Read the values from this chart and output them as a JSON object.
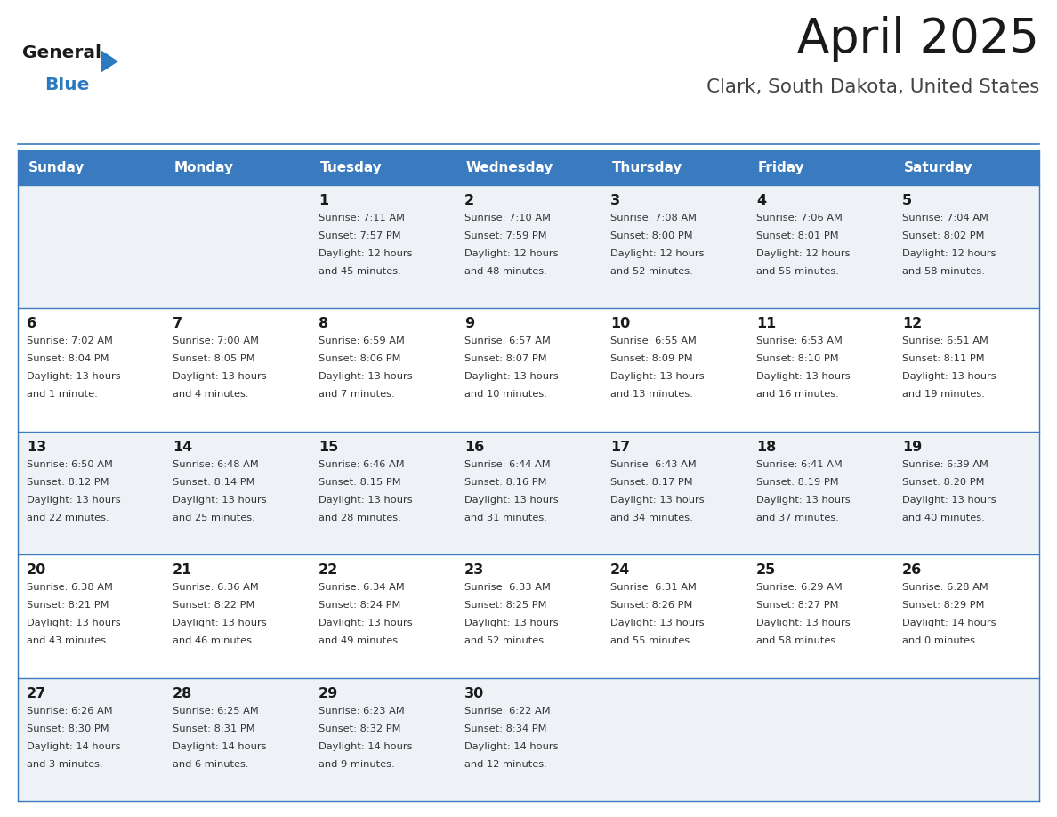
{
  "title": "April 2025",
  "subtitle": "Clark, South Dakota, United States",
  "header_bg": "#3a7abf",
  "header_text_color": "#ffffff",
  "cell_bg_even": "#eef2f7",
  "cell_bg_odd": "#ffffff",
  "border_color": "#3a7abf",
  "day_headers": [
    "Sunday",
    "Monday",
    "Tuesday",
    "Wednesday",
    "Thursday",
    "Friday",
    "Saturday"
  ],
  "title_color": "#1a1a1a",
  "subtitle_color": "#444444",
  "day_num_color": "#1a1a1a",
  "info_color": "#333333",
  "logo_general_color": "#1a1a1a",
  "logo_blue_color": "#2b7abf",
  "weeks": [
    [
      {
        "day": "",
        "sunrise": "",
        "sunset": "",
        "daylight": ""
      },
      {
        "day": "",
        "sunrise": "",
        "sunset": "",
        "daylight": ""
      },
      {
        "day": "1",
        "sunrise": "Sunrise: 7:11 AM",
        "sunset": "Sunset: 7:57 PM",
        "daylight": "Daylight: 12 hours\nand 45 minutes."
      },
      {
        "day": "2",
        "sunrise": "Sunrise: 7:10 AM",
        "sunset": "Sunset: 7:59 PM",
        "daylight": "Daylight: 12 hours\nand 48 minutes."
      },
      {
        "day": "3",
        "sunrise": "Sunrise: 7:08 AM",
        "sunset": "Sunset: 8:00 PM",
        "daylight": "Daylight: 12 hours\nand 52 minutes."
      },
      {
        "day": "4",
        "sunrise": "Sunrise: 7:06 AM",
        "sunset": "Sunset: 8:01 PM",
        "daylight": "Daylight: 12 hours\nand 55 minutes."
      },
      {
        "day": "5",
        "sunrise": "Sunrise: 7:04 AM",
        "sunset": "Sunset: 8:02 PM",
        "daylight": "Daylight: 12 hours\nand 58 minutes."
      }
    ],
    [
      {
        "day": "6",
        "sunrise": "Sunrise: 7:02 AM",
        "sunset": "Sunset: 8:04 PM",
        "daylight": "Daylight: 13 hours\nand 1 minute."
      },
      {
        "day": "7",
        "sunrise": "Sunrise: 7:00 AM",
        "sunset": "Sunset: 8:05 PM",
        "daylight": "Daylight: 13 hours\nand 4 minutes."
      },
      {
        "day": "8",
        "sunrise": "Sunrise: 6:59 AM",
        "sunset": "Sunset: 8:06 PM",
        "daylight": "Daylight: 13 hours\nand 7 minutes."
      },
      {
        "day": "9",
        "sunrise": "Sunrise: 6:57 AM",
        "sunset": "Sunset: 8:07 PM",
        "daylight": "Daylight: 13 hours\nand 10 minutes."
      },
      {
        "day": "10",
        "sunrise": "Sunrise: 6:55 AM",
        "sunset": "Sunset: 8:09 PM",
        "daylight": "Daylight: 13 hours\nand 13 minutes."
      },
      {
        "day": "11",
        "sunrise": "Sunrise: 6:53 AM",
        "sunset": "Sunset: 8:10 PM",
        "daylight": "Daylight: 13 hours\nand 16 minutes."
      },
      {
        "day": "12",
        "sunrise": "Sunrise: 6:51 AM",
        "sunset": "Sunset: 8:11 PM",
        "daylight": "Daylight: 13 hours\nand 19 minutes."
      }
    ],
    [
      {
        "day": "13",
        "sunrise": "Sunrise: 6:50 AM",
        "sunset": "Sunset: 8:12 PM",
        "daylight": "Daylight: 13 hours\nand 22 minutes."
      },
      {
        "day": "14",
        "sunrise": "Sunrise: 6:48 AM",
        "sunset": "Sunset: 8:14 PM",
        "daylight": "Daylight: 13 hours\nand 25 minutes."
      },
      {
        "day": "15",
        "sunrise": "Sunrise: 6:46 AM",
        "sunset": "Sunset: 8:15 PM",
        "daylight": "Daylight: 13 hours\nand 28 minutes."
      },
      {
        "day": "16",
        "sunrise": "Sunrise: 6:44 AM",
        "sunset": "Sunset: 8:16 PM",
        "daylight": "Daylight: 13 hours\nand 31 minutes."
      },
      {
        "day": "17",
        "sunrise": "Sunrise: 6:43 AM",
        "sunset": "Sunset: 8:17 PM",
        "daylight": "Daylight: 13 hours\nand 34 minutes."
      },
      {
        "day": "18",
        "sunrise": "Sunrise: 6:41 AM",
        "sunset": "Sunset: 8:19 PM",
        "daylight": "Daylight: 13 hours\nand 37 minutes."
      },
      {
        "day": "19",
        "sunrise": "Sunrise: 6:39 AM",
        "sunset": "Sunset: 8:20 PM",
        "daylight": "Daylight: 13 hours\nand 40 minutes."
      }
    ],
    [
      {
        "day": "20",
        "sunrise": "Sunrise: 6:38 AM",
        "sunset": "Sunset: 8:21 PM",
        "daylight": "Daylight: 13 hours\nand 43 minutes."
      },
      {
        "day": "21",
        "sunrise": "Sunrise: 6:36 AM",
        "sunset": "Sunset: 8:22 PM",
        "daylight": "Daylight: 13 hours\nand 46 minutes."
      },
      {
        "day": "22",
        "sunrise": "Sunrise: 6:34 AM",
        "sunset": "Sunset: 8:24 PM",
        "daylight": "Daylight: 13 hours\nand 49 minutes."
      },
      {
        "day": "23",
        "sunrise": "Sunrise: 6:33 AM",
        "sunset": "Sunset: 8:25 PM",
        "daylight": "Daylight: 13 hours\nand 52 minutes."
      },
      {
        "day": "24",
        "sunrise": "Sunrise: 6:31 AM",
        "sunset": "Sunset: 8:26 PM",
        "daylight": "Daylight: 13 hours\nand 55 minutes."
      },
      {
        "day": "25",
        "sunrise": "Sunrise: 6:29 AM",
        "sunset": "Sunset: 8:27 PM",
        "daylight": "Daylight: 13 hours\nand 58 minutes."
      },
      {
        "day": "26",
        "sunrise": "Sunrise: 6:28 AM",
        "sunset": "Sunset: 8:29 PM",
        "daylight": "Daylight: 14 hours\nand 0 minutes."
      }
    ],
    [
      {
        "day": "27",
        "sunrise": "Sunrise: 6:26 AM",
        "sunset": "Sunset: 8:30 PM",
        "daylight": "Daylight: 14 hours\nand 3 minutes."
      },
      {
        "day": "28",
        "sunrise": "Sunrise: 6:25 AM",
        "sunset": "Sunset: 8:31 PM",
        "daylight": "Daylight: 14 hours\nand 6 minutes."
      },
      {
        "day": "29",
        "sunrise": "Sunrise: 6:23 AM",
        "sunset": "Sunset: 8:32 PM",
        "daylight": "Daylight: 14 hours\nand 9 minutes."
      },
      {
        "day": "30",
        "sunrise": "Sunrise: 6:22 AM",
        "sunset": "Sunset: 8:34 PM",
        "daylight": "Daylight: 14 hours\nand 12 minutes."
      },
      {
        "day": "",
        "sunrise": "",
        "sunset": "",
        "daylight": ""
      },
      {
        "day": "",
        "sunrise": "",
        "sunset": "",
        "daylight": ""
      },
      {
        "day": "",
        "sunrise": "",
        "sunset": "",
        "daylight": ""
      }
    ]
  ]
}
